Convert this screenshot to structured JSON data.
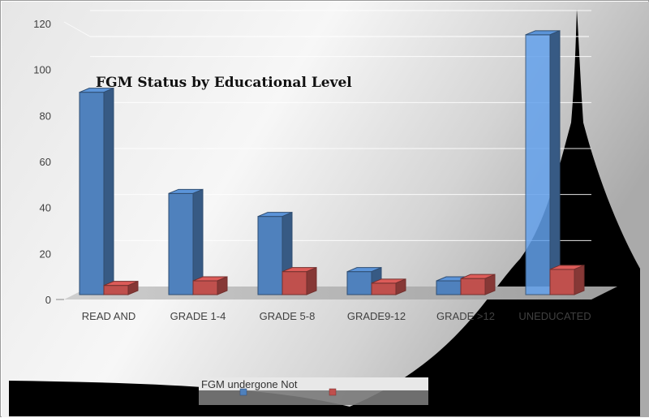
{
  "chart_data": {
    "type": "bar",
    "title": "FGM Status by Educational Level",
    "categories": [
      "READ AND",
      "GRADE 1-4",
      "GRADE 5-8",
      "GRADE9-12",
      "GRADE >12",
      "UNEDUCATED"
    ],
    "series": [
      {
        "name": "FGM undergone",
        "color": "#4f81bd",
        "values": [
          88,
          44,
          34,
          10,
          6,
          113
        ]
      },
      {
        "name": "Not",
        "color": "#c0504d",
        "values": [
          4,
          6,
          10,
          5,
          7,
          11
        ]
      }
    ],
    "ylim": [
      0,
      120
    ],
    "yticks": [
      0,
      20,
      40,
      60,
      80,
      100,
      120
    ],
    "xlabel": "",
    "ylabel": "",
    "grid": true,
    "legend_position": "bottom",
    "legend_text": "FGM undergone Not"
  }
}
